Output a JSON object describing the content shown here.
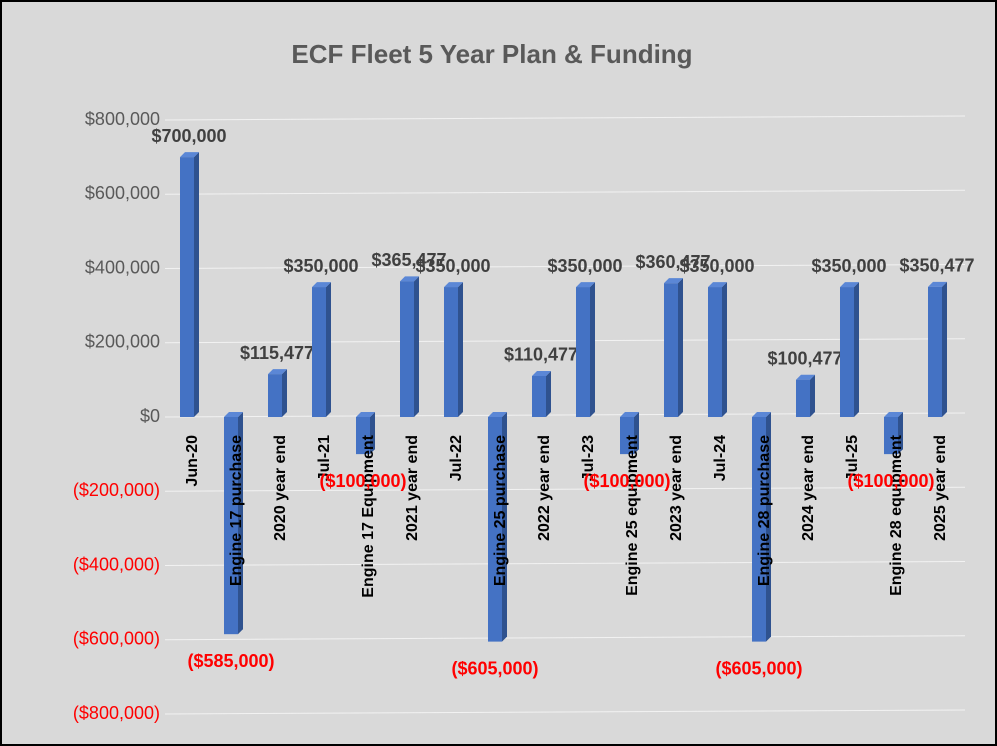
{
  "chart_data": {
    "type": "bar",
    "title": "ECF Fleet 5 Year Plan & Funding",
    "categories": [
      "Jun-20",
      "Engine 17 purchase",
      "2020 year end",
      "Jul-21",
      "Engine 17 Equipment",
      "2021 year end",
      "Jul-22",
      "Engine 25 purchase",
      "2022 year end",
      "Jul-23",
      "Engine 25 equipment",
      "2023 year end",
      "Jul-24",
      "Engine 28 purchase",
      "2024 year end",
      "Jul-25",
      "Engine 28 equipment",
      "2025 year end"
    ],
    "values": [
      700000,
      -585000,
      115477,
      350000,
      -100000,
      365477,
      350000,
      -605000,
      110477,
      350000,
      -100000,
      360477,
      350000,
      -605000,
      100477,
      350000,
      -100000,
      350477
    ],
    "value_labels": [
      "$700,000",
      "($585,000)",
      "$115,477",
      "$350,000",
      "($100,000)",
      "$365,477",
      "$350,000",
      "($605,000)",
      "$110,477",
      "$350,000",
      "($100,000)",
      "$360,477",
      "$350,000",
      "($605,000)",
      "$100,477",
      "$350,000",
      "($100,000)",
      "$350,477"
    ],
    "color": "#4472c4",
    "ylim": [
      -800000,
      800000
    ],
    "yticks": [
      {
        "value": -800000,
        "label": "($800,000)"
      },
      {
        "value": -600000,
        "label": "($600,000)"
      },
      {
        "value": -400000,
        "label": "($400,000)"
      },
      {
        "value": -200000,
        "label": "($200,000)"
      },
      {
        "value": 0,
        "label": "$0"
      },
      {
        "value": 200000,
        "label": "$200,000"
      },
      {
        "value": 400000,
        "label": "$400,000"
      },
      {
        "value": 600000,
        "label": "$600,000"
      },
      {
        "value": 800000,
        "label": "$800,000"
      }
    ],
    "grid": true
  }
}
